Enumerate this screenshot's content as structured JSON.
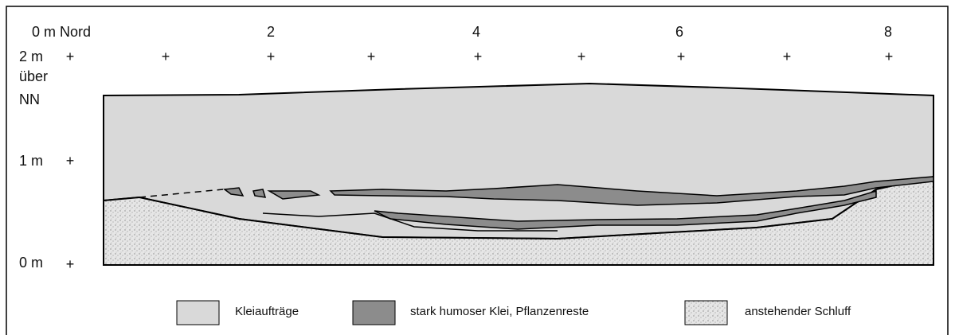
{
  "top_labels": {
    "origin": "0 m Nord",
    "marks": [
      "2",
      "4",
      "6",
      "8"
    ]
  },
  "y_labels": {
    "top": [
      "2 m",
      "über",
      "NN"
    ],
    "mid": "1 m",
    "bottom": "0 m"
  },
  "grid_marker": "+",
  "legend": [
    {
      "label": "Kleiaufträge"
    },
    {
      "label": "stark humoser Klei, Pflanzenreste"
    },
    {
      "label": "anstehender Schluff"
    }
  ]
}
